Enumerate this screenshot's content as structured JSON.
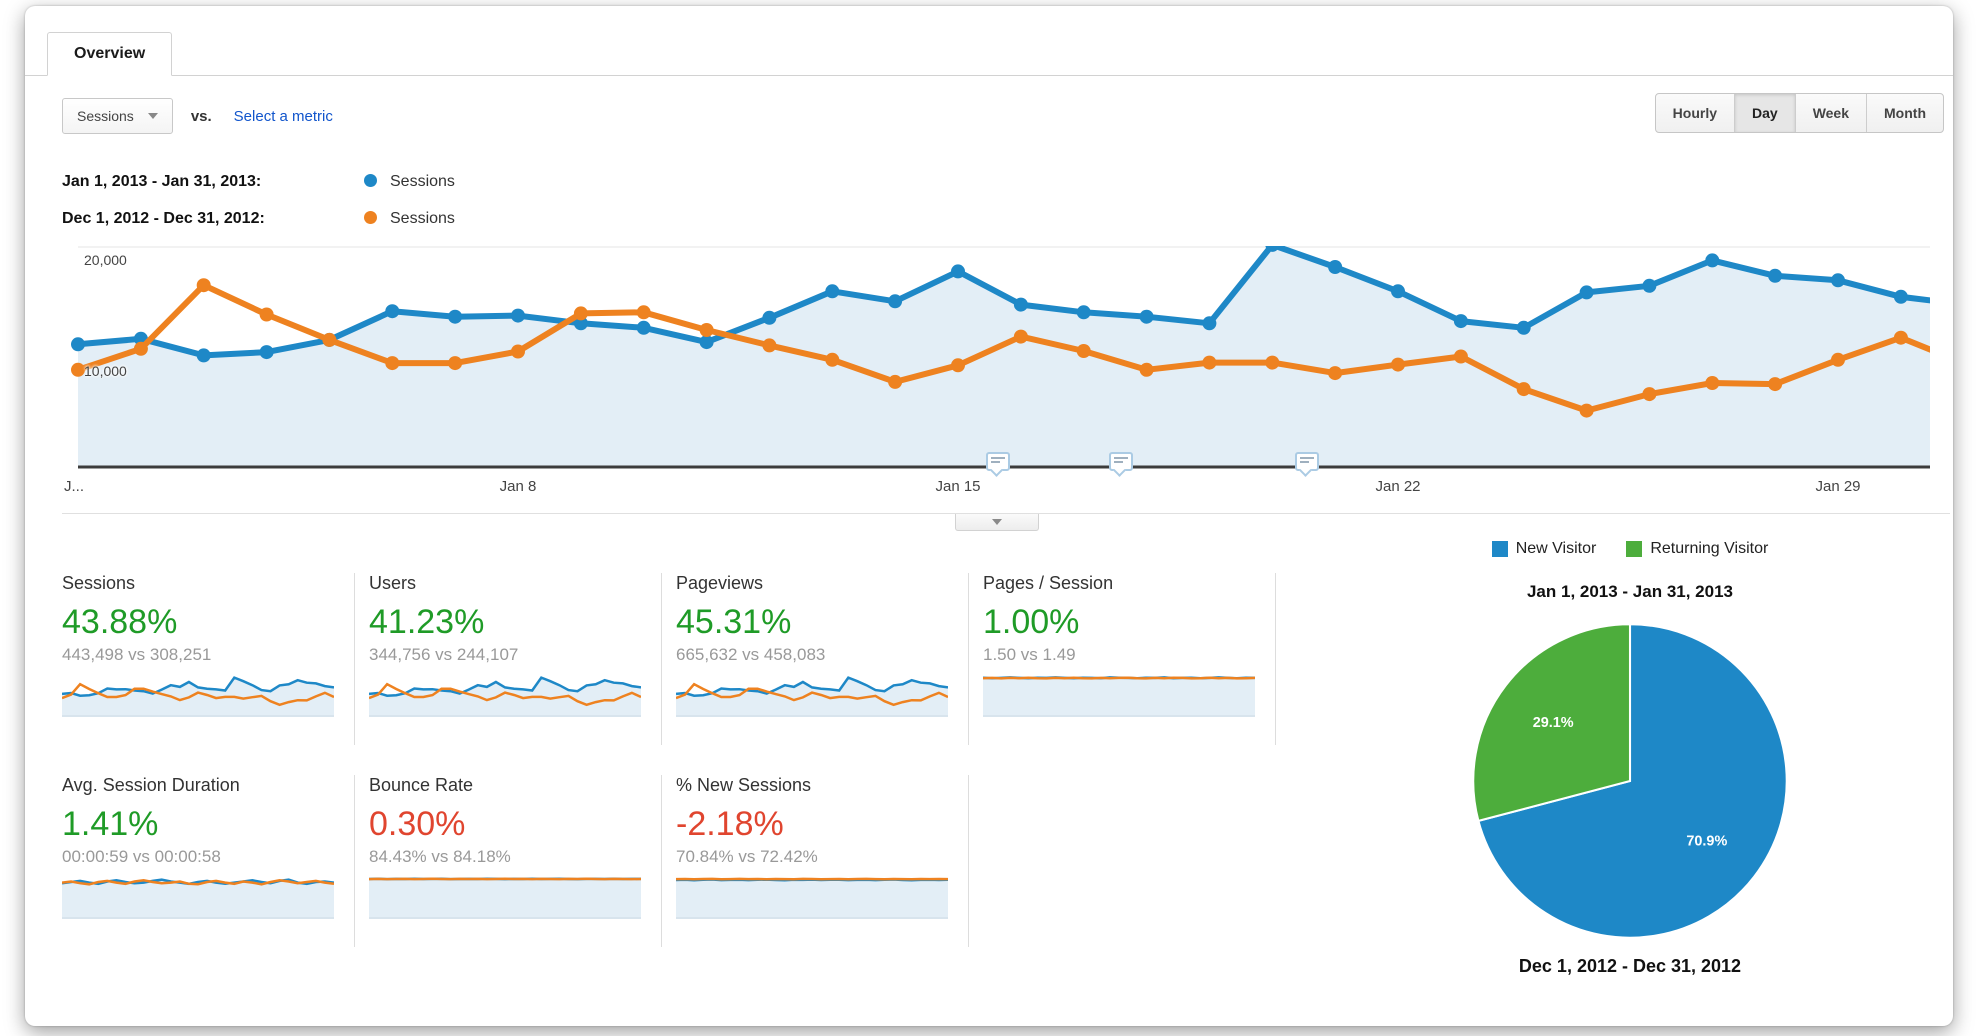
{
  "colors": {
    "blue": "#1e88c7",
    "orange": "#ee8220",
    "green_text": "#1f9b27",
    "red_text": "#e0452f",
    "pie_green": "#4dad3c",
    "area_fill": "#e3eef6",
    "link": "#1155cc"
  },
  "tab_label": "Overview",
  "controls": {
    "metric_selector_value": "Sessions",
    "vs_label": "vs.",
    "select_metric_label": "Select a metric",
    "granularity": [
      {
        "label": "Hourly",
        "active": false
      },
      {
        "label": "Day",
        "active": true
      },
      {
        "label": "Week",
        "active": false
      },
      {
        "label": "Month",
        "active": false
      }
    ]
  },
  "legend": [
    {
      "date_range": "Jan 1, 2013 - Jan 31, 2013:",
      "metric": "Sessions",
      "color": "#1e88c7"
    },
    {
      "date_range": "Dec 1, 2012 - Dec 31, 2012:",
      "metric": "Sessions",
      "color": "#ee8220"
    }
  ],
  "chart_data": [
    {
      "type": "line",
      "ylim": [
        0,
        20000
      ],
      "grid": true,
      "y_ticks": [
        {
          "label": "20,000",
          "value": 20000
        },
        {
          "label": "10,000",
          "value": 10000
        }
      ],
      "x_ticks": [
        {
          "label": "J...",
          "day": 1
        },
        {
          "label": "Jan 8",
          "day": 8
        },
        {
          "label": "Jan 15",
          "day": 15
        },
        {
          "label": "Jan 22",
          "day": 22
        },
        {
          "label": "Jan 29",
          "day": 29
        }
      ],
      "annotation_marker_days": [
        15.64,
        17.6,
        20.55
      ],
      "series": [
        {
          "name": "Sessions",
          "period": "Jan 1, 2013 - Jan 31, 2013",
          "color": "#1e88c7",
          "values": [
            11100,
            11600,
            10100,
            10400,
            11500,
            14100,
            13600,
            13700,
            13000,
            12600,
            11300,
            13500,
            15900,
            15000,
            17700,
            14700,
            14000,
            13600,
            13000,
            20100,
            18100,
            15900,
            13200,
            12600,
            15800,
            16400,
            18700,
            17300,
            16900,
            15400,
            14700
          ]
        },
        {
          "name": "Sessions",
          "period": "Dec 1, 2012 - Dec 31, 2012",
          "color": "#ee8220",
          "values": [
            8800,
            10700,
            16450,
            13800,
            11500,
            9400,
            9400,
            10450,
            13900,
            14000,
            12400,
            11000,
            9700,
            7700,
            9200,
            11800,
            10500,
            8800,
            9450,
            9450,
            8500,
            9270,
            10000,
            7050,
            5100,
            6600,
            7600,
            7500,
            9700,
            11700,
            9400
          ]
        }
      ]
    },
    {
      "type": "pie",
      "title_top": "Jan 1, 2013 - Jan 31, 2013",
      "title_bottom": "Dec 1, 2012 - Dec 31, 2012",
      "legend": [
        {
          "label": "New Visitor",
          "color": "#1e88c7"
        },
        {
          "label": "Returning Visitor",
          "color": "#4dad3c"
        }
      ],
      "slices": [
        {
          "label": "New Visitor",
          "value": 70.9,
          "display": "70.9%",
          "color": "#1e88c7"
        },
        {
          "label": "Returning Visitor",
          "value": 29.1,
          "display": "29.1%",
          "color": "#4dad3c"
        }
      ]
    }
  ],
  "cards": [
    {
      "title": "Sessions",
      "change_pct": "43.88%",
      "direction": "up",
      "comparison": "443,498 vs 308,251",
      "spark_ref": 0
    },
    {
      "title": "Users",
      "change_pct": "41.23%",
      "direction": "up",
      "comparison": "344,756 vs 244,107",
      "spark_ref": 0
    },
    {
      "title": "Pageviews",
      "change_pct": "45.31%",
      "direction": "up",
      "comparison": "665,632 vs 458,083",
      "spark_ref": 0
    },
    {
      "title": "Pages / Session",
      "change_pct": "1.00%",
      "direction": "up",
      "comparison": "1.50 vs 1.49",
      "spark": {
        "ymax": 1.58,
        "blue": [
          1.51,
          1.49,
          1.5,
          1.52,
          1.5,
          1.49,
          1.51,
          1.5,
          1.52,
          1.5,
          1.49,
          1.51,
          1.5,
          1.49,
          1.52,
          1.51,
          1.5,
          1.49,
          1.51,
          1.5,
          1.52,
          1.49,
          1.5,
          1.51,
          1.49,
          1.5,
          1.52,
          1.5,
          1.49,
          1.51,
          1.5
        ],
        "orange": [
          1.49,
          1.5,
          1.48,
          1.5,
          1.49,
          1.51,
          1.49,
          1.48,
          1.5,
          1.49,
          1.51,
          1.49,
          1.48,
          1.5,
          1.49,
          1.5,
          1.51,
          1.49,
          1.48,
          1.5,
          1.49,
          1.51,
          1.5,
          1.48,
          1.49,
          1.51,
          1.49,
          1.5,
          1.48,
          1.49,
          1.5
        ]
      }
    },
    {
      "title": "Avg. Session Duration",
      "change_pct": "1.41%",
      "direction": "up",
      "comparison": "00:00:59 vs 00:00:58",
      "spark": {
        "ymax": 66,
        "blue": [
          57,
          59,
          61,
          58,
          56,
          60,
          62,
          59,
          57,
          58,
          61,
          63,
          60,
          58,
          56,
          59,
          61,
          58,
          56,
          58,
          60,
          62,
          59,
          57,
          61,
          63,
          58,
          56,
          59,
          60,
          58
        ],
        "orange": [
          58,
          60,
          57,
          55,
          59,
          61,
          58,
          56,
          60,
          62,
          59,
          57,
          58,
          60,
          56,
          55,
          59,
          61,
          58,
          56,
          60,
          58,
          55,
          59,
          62,
          60,
          57,
          59,
          61,
          58,
          56
        ]
      }
    },
    {
      "title": "Bounce Rate",
      "change_pct": "0.30%",
      "direction": "down",
      "comparison": "84.43% vs 84.18%",
      "spark": {
        "ymax": 86.5,
        "blue": [
          84.2,
          84.6,
          84.1,
          84.5,
          84.3,
          84.7,
          84.2,
          84.4,
          84.6,
          84.1,
          84.3,
          84.5,
          84.2,
          84.6,
          84.4,
          84.1,
          84.5,
          84.3,
          84.6,
          84.2,
          84.4,
          84.7,
          84.3,
          84.1,
          84.5,
          84.4,
          84.2,
          84.6,
          84.3,
          84.5,
          84.4
        ],
        "orange": [
          84.1,
          84.4,
          84.0,
          84.3,
          84.5,
          84.1,
          84.3,
          84.6,
          84.2,
          84.0,
          84.4,
          84.2,
          84.5,
          84.1,
          84.3,
          84.6,
          84.2,
          84.4,
          84.1,
          84.5,
          84.3,
          84.0,
          84.4,
          84.2,
          84.6,
          84.3,
          84.1,
          84.4,
          84.2,
          84.0,
          84.3
        ]
      }
    },
    {
      "title": "% New Sessions",
      "change_pct": "-2.18%",
      "direction": "down",
      "comparison": "70.84% vs 72.42%",
      "spark": {
        "ymax": 74.5,
        "blue": [
          70.5,
          71.2,
          70.1,
          70.9,
          71.5,
          70.3,
          70.8,
          71.1,
          70.4,
          70.9,
          71.3,
          70.6,
          70.2,
          71.0,
          70.7,
          71.4,
          70.5,
          70.9,
          71.2,
          70.4,
          70.8,
          71.1,
          70.3,
          70.9,
          71.5,
          70.6,
          70.2,
          70.8,
          71.0,
          70.5,
          70.9
        ],
        "orange": [
          72.3,
          72.6,
          72.1,
          72.5,
          72.8,
          72.2,
          72.4,
          72.7,
          72.3,
          72.5,
          72.0,
          72.6,
          72.4,
          72.2,
          72.7,
          72.5,
          72.1,
          72.4,
          72.6,
          72.2,
          72.5,
          72.8,
          72.3,
          72.1,
          72.6,
          72.4,
          72.2,
          72.5,
          72.3,
          72.6,
          72.4
        ]
      }
    }
  ]
}
